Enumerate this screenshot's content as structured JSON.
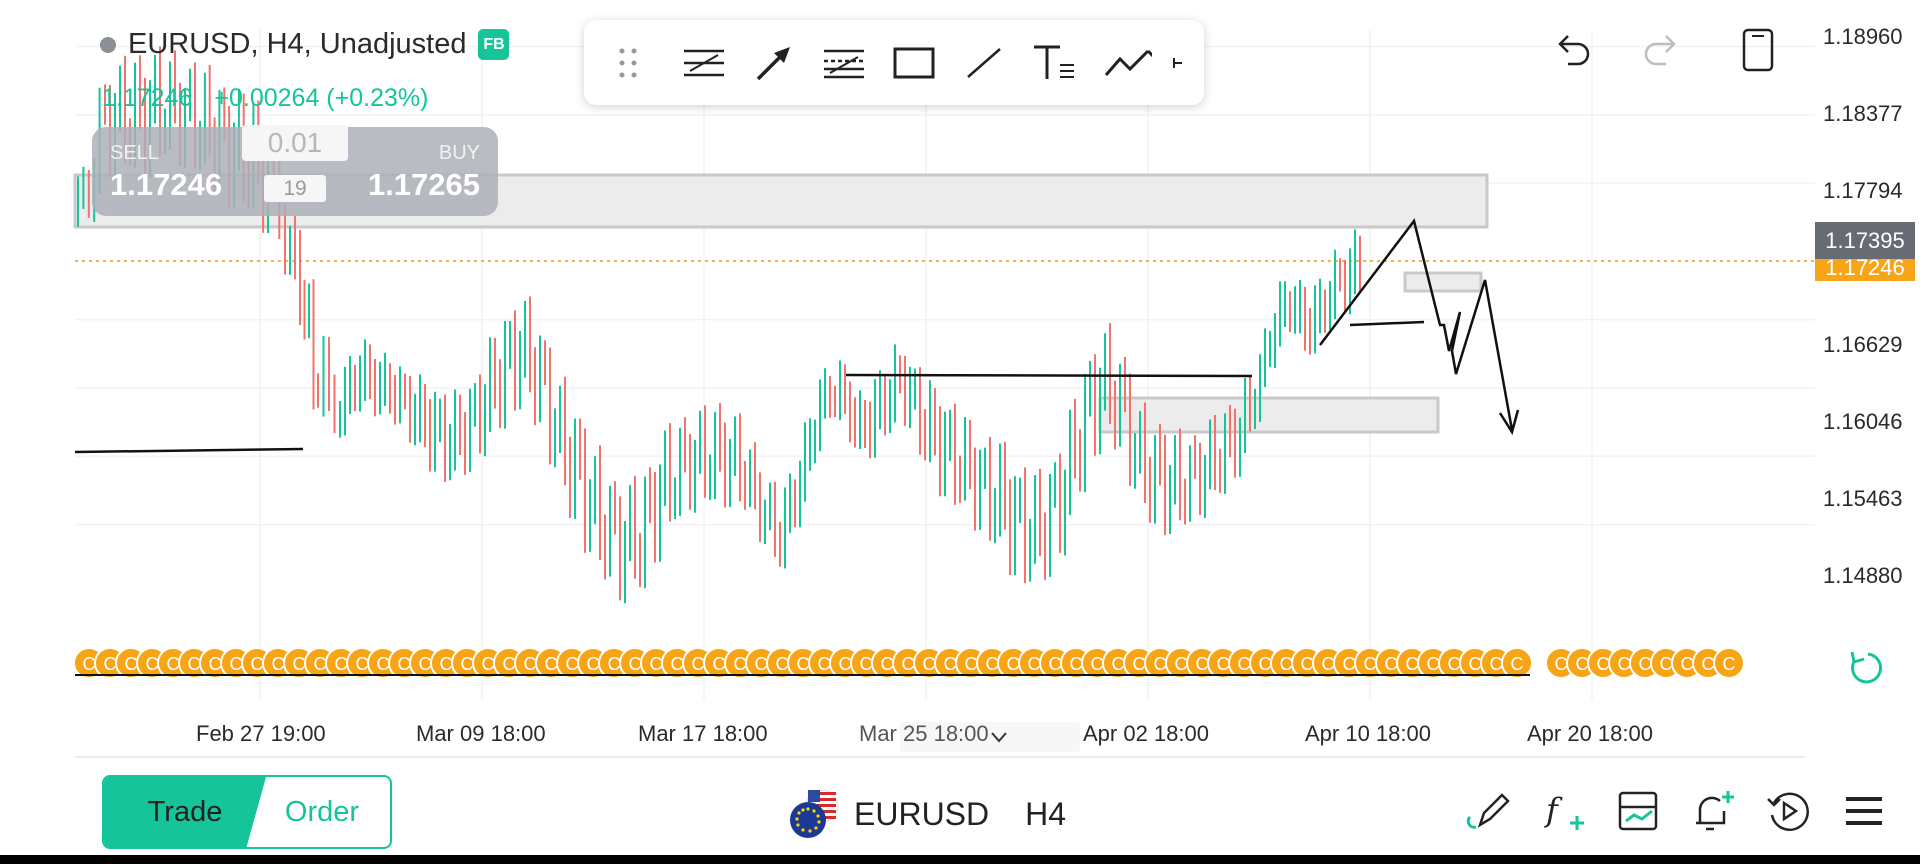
{
  "header": {
    "symbol_line": "EURUSD, H4, Unadjusted",
    "badge": "FB",
    "price": "1.17246",
    "change": "+0.00264 (+0.23%)"
  },
  "trade_box": {
    "sell_label": "SELL",
    "sell_price": "1.17246",
    "buy_label": "BUY",
    "buy_price": "1.17265",
    "lot": "0.01",
    "spread": "19"
  },
  "toolbar": {
    "icons": [
      "drag-handle-icon",
      "parallel-channel-icon",
      "arrow-icon",
      "fib-retracement-icon",
      "rectangle-icon",
      "trend-line-icon",
      "text-icon",
      "polyline-icon",
      "more-icon"
    ]
  },
  "top_right_icons": [
    "undo-icon",
    "redo-icon",
    "fullscreen-icon"
  ],
  "price_axis": {
    "labels": [
      "1.18960",
      "1.18377",
      "1.17794",
      "1.17395",
      "1.16629",
      "1.16046",
      "1.15463",
      "1.14880"
    ],
    "current_tag": "1.17395",
    "bid_tag": "1.17246"
  },
  "time_axis": {
    "labels": [
      "Feb 27 19:00",
      "Mar 09 18:00",
      "Mar 17 18:00",
      "Mar 25 18:00",
      "Apr 02 18:00",
      "Apr 10 18:00",
      "Apr 20 18:00"
    ]
  },
  "chart_data": {
    "type": "candlestick",
    "symbol": "EURUSD",
    "timeframe": "H4",
    "ylim": [
      1.1445,
      1.1905
    ],
    "price_ticks": [
      1.1896,
      1.18377,
      1.17794,
      1.16629,
      1.16046,
      1.15463,
      1.1488
    ],
    "current_price_line": 1.17246,
    "colors": {
      "up": "#16c49a",
      "down": "#f0736e",
      "bid_line": "#f7a416"
    }
  },
  "bottom": {
    "trade_label": "Trade",
    "order_label": "Order",
    "symbol": "EURUSD",
    "timeframe": "H4",
    "icons": [
      "draw-pencil-icon",
      "indicator-fx-icon",
      "template-icon",
      "alert-bell-icon",
      "replay-icon",
      "menu-icon"
    ]
  },
  "colors": {
    "accent": "#16c49a",
    "orange": "#f7a416",
    "gray": "#adb0b8"
  }
}
